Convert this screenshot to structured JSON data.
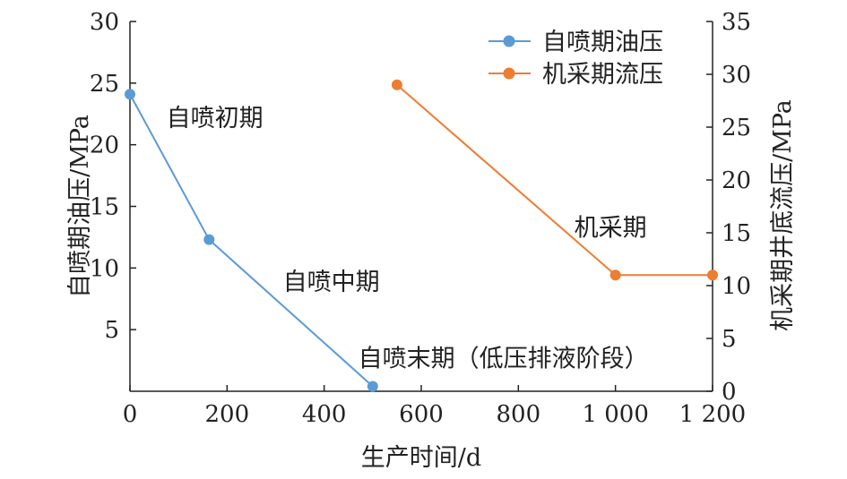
{
  "chart_data": {
    "type": "line",
    "xlabel": "生产时间/d",
    "ylabel_left": "自喷期油压/MPa",
    "ylabel_right": "机采期井底流压/MPa",
    "xlim": [
      0,
      1200
    ],
    "ylim_left": [
      0,
      30
    ],
    "ylim_right": [
      0,
      35
    ],
    "x_ticks": [
      0,
      200,
      400,
      600,
      800,
      1000,
      1200
    ],
    "x_tick_labels": [
      "0",
      "200",
      "400",
      "600",
      "800",
      "1 000",
      "1 200"
    ],
    "y_left_ticks": [
      5,
      10,
      15,
      20,
      25,
      30
    ],
    "y_left_tick_labels": [
      "5",
      "10",
      "15",
      "20",
      "25",
      "30"
    ],
    "y_right_ticks": [
      0,
      5,
      10,
      15,
      20,
      25,
      30,
      35
    ],
    "y_right_tick_labels": [
      "0",
      "5",
      "10",
      "15",
      "20",
      "25",
      "30",
      "35"
    ],
    "legend_position": "top-right",
    "grid": false,
    "series": [
      {
        "name": "自喷期油压",
        "axis": "left",
        "color": "#5b9bd5",
        "x": [
          0,
          163,
          500
        ],
        "y": [
          24.1,
          12.3,
          0.4
        ]
      },
      {
        "name": "机采期流压",
        "axis": "right",
        "color": "#ed7d31",
        "x": [
          550,
          1000,
          1200
        ],
        "y": [
          29.0,
          11.0,
          11.0
        ]
      }
    ],
    "annotations": [
      {
        "text": "自喷初期",
        "x": 75,
        "y_left": 21.5
      },
      {
        "text": "自喷中期",
        "x": 315,
        "y_left": 8.2
      },
      {
        "text": "自喷末期（低压排液阶段）",
        "x": 470,
        "y_left": 2.0
      },
      {
        "text": "机采期",
        "x": 915,
        "y_left": 12.6
      }
    ]
  }
}
